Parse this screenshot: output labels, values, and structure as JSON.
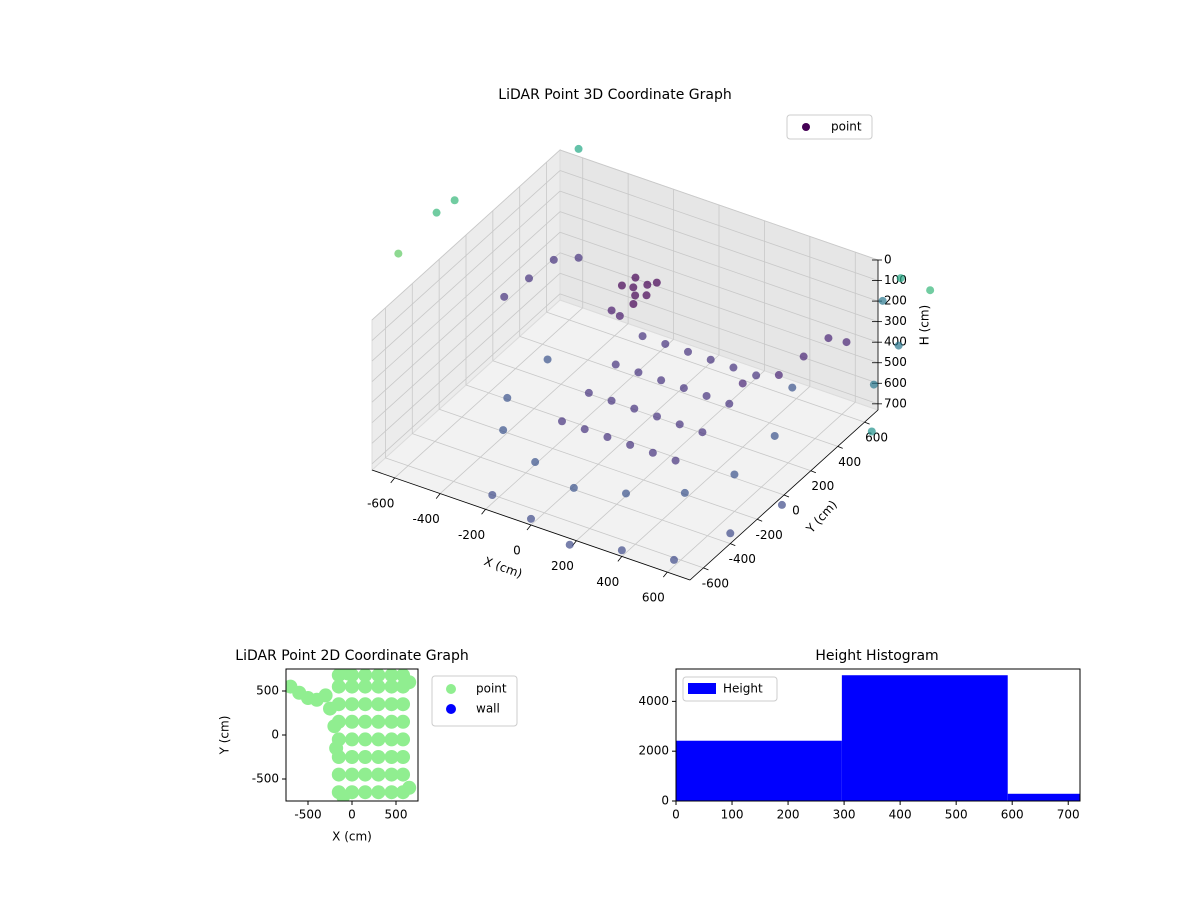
{
  "chart_data": [
    {
      "type": "scatter3d",
      "title": "LiDAR Point 3D Coordinate Graph",
      "xlabel": "X (cm)",
      "ylabel": "Y (cm)",
      "zlabel": "H (cm)",
      "xlim": [
        -700,
        700
      ],
      "ylim": [
        -700,
        700
      ],
      "zlim": [
        0,
        730
      ],
      "zinverted": true,
      "xticks": [
        -600,
        -400,
        -200,
        0,
        200,
        400,
        600
      ],
      "yticks": [
        -600,
        -400,
        -200,
        0,
        200,
        400,
        600
      ],
      "zticks": [
        0,
        100,
        200,
        300,
        400,
        500,
        600,
        700
      ],
      "grid": true,
      "legend": "upper right",
      "series": [
        {
          "name": "point",
          "color": "#440154",
          "x": [
            -200,
            -150,
            -180,
            -220,
            -130,
            -170,
            -250,
            -120,
            -200,
            -260,
            -100,
            0,
            100,
            200,
            300,
            400,
            -100,
            0,
            100,
            200,
            300,
            400,
            -100,
            0,
            100,
            200,
            300,
            400,
            -100,
            0,
            100,
            200,
            300,
            400,
            -300,
            -100,
            100,
            300,
            500,
            600,
            -400,
            -400,
            600,
            500,
            0,
            200,
            400,
            600,
            700,
            750,
            -200,
            500,
            550,
            600,
            400,
            650,
            -600,
            -550,
            -650,
            -500,
            -750,
            -800,
            -850,
            -500,
            800,
            750,
            850,
            900,
            800,
            850
          ],
          "y": [
            400,
            420,
            380,
            450,
            380,
            350,
            400,
            440,
            300,
            340,
            -300,
            -300,
            -300,
            -300,
            -300,
            -300,
            -100,
            -100,
            -100,
            -100,
            -100,
            -100,
            100,
            100,
            100,
            100,
            100,
            100,
            300,
            300,
            300,
            300,
            300,
            300,
            -400,
            -500,
            -550,
            -500,
            -400,
            -200,
            -200,
            100,
            100,
            400,
            -700,
            -750,
            -700,
            -650,
            -400,
            -100,
            -650,
            300,
            400,
            500,
            200,
            550,
            300,
            400,
            200,
            500,
            0,
            -50,
            -250,
            500,
            700,
            650,
            600,
            750,
            500,
            400
          ],
          "z": [
            300,
            280,
            320,
            290,
            300,
            340,
            310,
            270,
            380,
            400,
            500,
            500,
            500,
            500,
            500,
            500,
            480,
            480,
            480,
            480,
            480,
            480,
            460,
            460,
            460,
            460,
            460,
            460,
            440,
            440,
            440,
            440,
            440,
            440,
            560,
            580,
            600,
            580,
            560,
            550,
            560,
            550,
            540,
            520,
            700,
            720,
            700,
            700,
            680,
            700,
            690,
            400,
            350,
            300,
            420,
            330,
            350,
            300,
            400,
            330,
            -150,
            -100,
            0,
            -200,
            50,
            150,
            300,
            100,
            450,
            600
          ],
          "colors": [
            "#440154",
            "#440154",
            "#440154",
            "#440154",
            "#440154",
            "#440154",
            "#440154",
            "#440154",
            "#481a6c",
            "#481a6c",
            "#46327e",
            "#46327e",
            "#46327e",
            "#46327e",
            "#46327e",
            "#46327e",
            "#46327e",
            "#46327e",
            "#46327e",
            "#46327e",
            "#46327e",
            "#46327e",
            "#46327e",
            "#46327e",
            "#46327e",
            "#46327e",
            "#46327e",
            "#46327e",
            "#46327e",
            "#46327e",
            "#46327e",
            "#46327e",
            "#46327e",
            "#46327e",
            "#3b528b",
            "#3b528b",
            "#3b528b",
            "#3b528b",
            "#3b528b",
            "#3b528b",
            "#3b528b",
            "#3b528b",
            "#3b528b",
            "#3b528b",
            "#3e4a89",
            "#3e4a89",
            "#3e4a89",
            "#3e4a89",
            "#3e4a89",
            "#3e4a89",
            "#3e4a89",
            "#482475",
            "#482475",
            "#482475",
            "#482475",
            "#482475",
            "#46327e",
            "#46327e",
            "#46327e",
            "#46327e",
            "#35b779",
            "#35b779",
            "#5ec962",
            "#22a884",
            "#22a884",
            "#2a788e",
            "#2a788e",
            "#35b779",
            "#2a788e",
            "#21918c"
          ]
        }
      ]
    },
    {
      "type": "scatter",
      "title": "LiDAR Point 2D Coordinate Graph",
      "xlabel": "X (cm)",
      "ylabel": "Y (cm)",
      "xlim": [
        -750,
        750
      ],
      "ylim": [
        -750,
        750
      ],
      "xticks": [
        -500,
        0,
        500
      ],
      "yticks": [
        -500,
        0,
        500
      ],
      "legend": "outside right",
      "series": [
        {
          "name": "point",
          "color": "#90ee90",
          "x": [
            -150,
            0,
            150,
            300,
            450,
            580,
            -150,
            0,
            150,
            300,
            450,
            580,
            -150,
            0,
            150,
            300,
            450,
            580,
            -150,
            0,
            150,
            300,
            450,
            580,
            -150,
            0,
            150,
            300,
            450,
            580,
            -150,
            0,
            150,
            300,
            450,
            580,
            -150,
            0,
            150,
            300,
            450,
            580,
            -150,
            0,
            150,
            300,
            450,
            580,
            -700,
            -600,
            -500,
            -400,
            -300,
            -250,
            -200,
            -180,
            -100,
            650,
            650,
            -50
          ],
          "y": [
            -650,
            -650,
            -650,
            -650,
            -650,
            -650,
            -450,
            -450,
            -450,
            -450,
            -450,
            -450,
            -250,
            -250,
            -250,
            -250,
            -250,
            -250,
            -50,
            -50,
            -50,
            -50,
            -50,
            -50,
            150,
            150,
            150,
            150,
            150,
            150,
            350,
            350,
            350,
            350,
            350,
            350,
            550,
            550,
            550,
            550,
            550,
            550,
            680,
            680,
            680,
            680,
            680,
            680,
            550,
            480,
            420,
            400,
            450,
            300,
            100,
            -150,
            -700,
            600,
            -600,
            700
          ]
        },
        {
          "name": "wall",
          "color": "#0000ff",
          "x": [],
          "y": []
        }
      ]
    },
    {
      "type": "histogram",
      "title": "Height Histogram",
      "bins": [
        0,
        296,
        592,
        721
      ],
      "xlim": [
        0,
        721
      ],
      "ylim": [
        0,
        5300
      ],
      "xticks": [
        0,
        100,
        200,
        300,
        400,
        500,
        600,
        700
      ],
      "yticks": [
        0,
        2000,
        4000
      ],
      "legend": "upper left",
      "series": [
        {
          "name": "Height",
          "color": "#0000ff",
          "values": [
            2420,
            5050,
            290
          ]
        }
      ]
    }
  ]
}
